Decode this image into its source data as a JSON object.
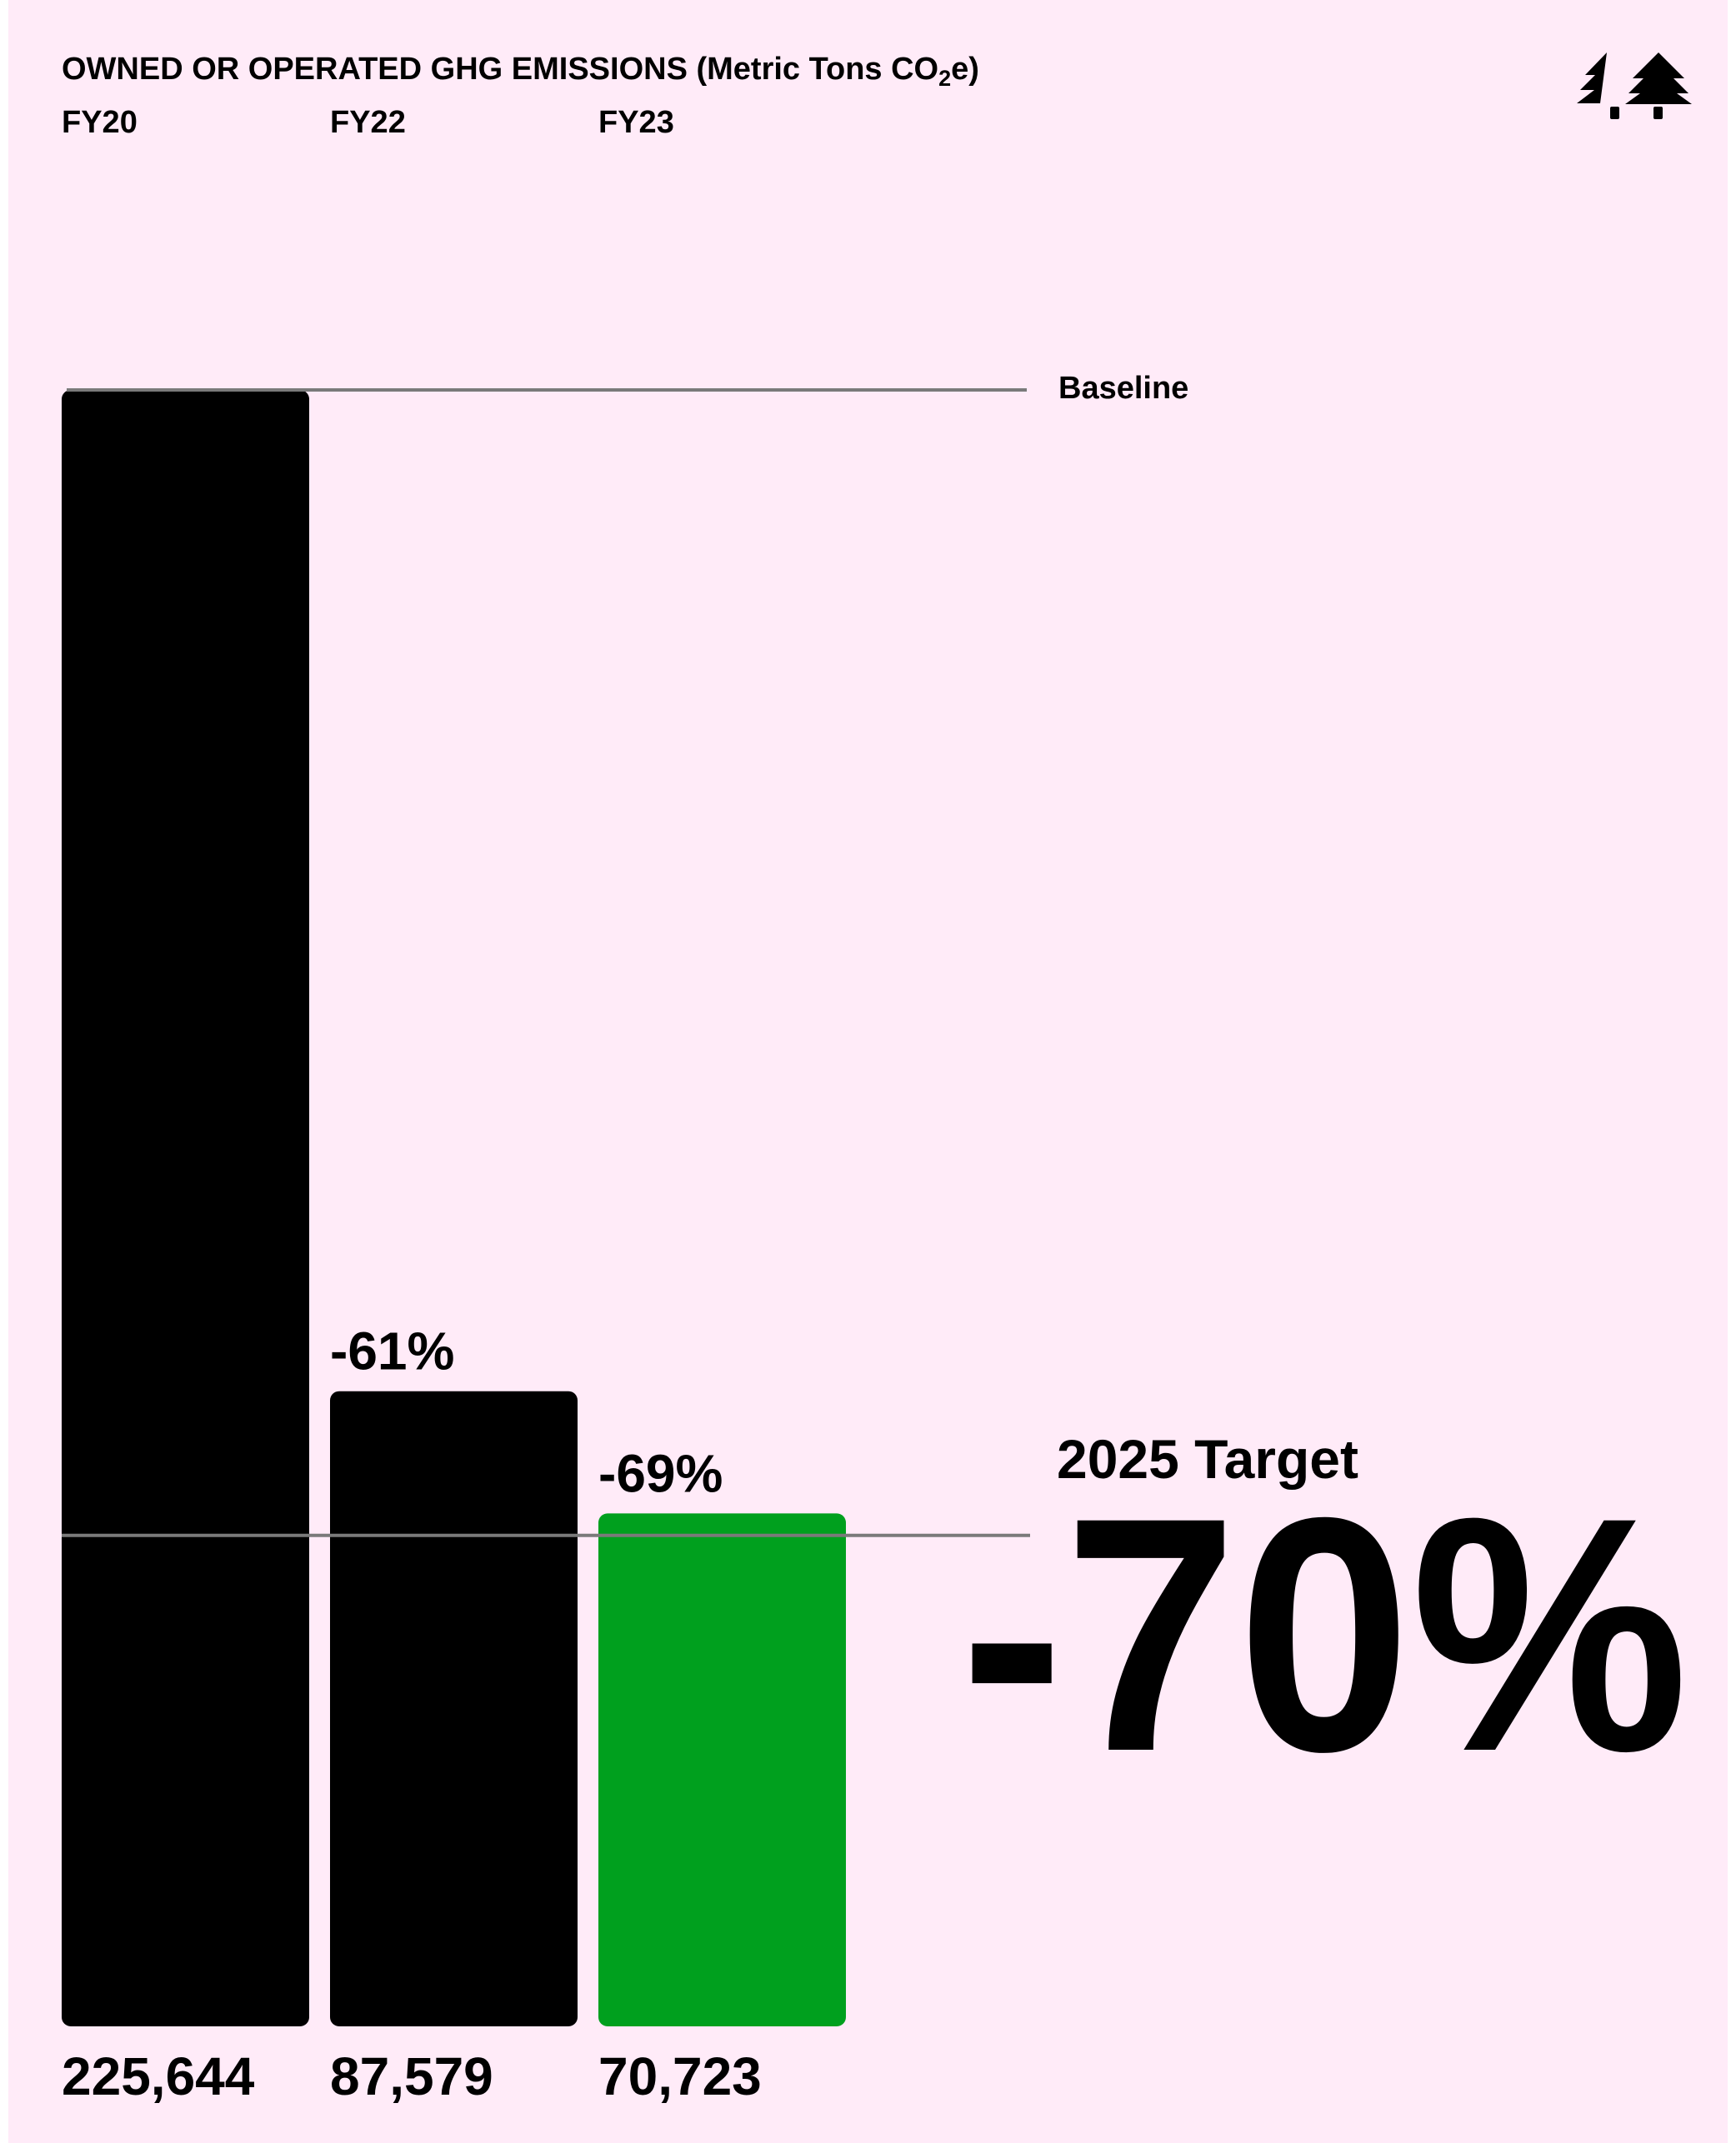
{
  "chart_data": {
    "type": "bar",
    "title": "OWNED OR OPERATED GHG EMISSIONS (Metric Tons CO",
    "title_subscript": "2",
    "title_suffix": "e)",
    "categories": [
      "FY20",
      "FY22",
      "FY23"
    ],
    "values": [
      225644,
      87579,
      70723
    ],
    "value_labels": [
      "225,644",
      "87,579",
      "70,723"
    ],
    "change_labels": [
      "",
      "-61%",
      "-69%"
    ],
    "bar_colors": [
      "#000000",
      "#000000",
      "#00a01e"
    ],
    "baseline": {
      "label": "Baseline",
      "value": 225644
    },
    "target": {
      "label": "2025 Target",
      "value_text": "-70%",
      "reduction": 0.7
    },
    "ylim": [
      0,
      225644
    ],
    "grid": false,
    "legend": "none"
  },
  "colors": {
    "page": "#ffffff",
    "panel": "#ffebf8",
    "bar": "#000000",
    "highlight": "#00a01e",
    "reference_line": "#7a7a7a",
    "text": "#000000"
  },
  "logo": {
    "icon": "two-trees-logo-icon"
  }
}
